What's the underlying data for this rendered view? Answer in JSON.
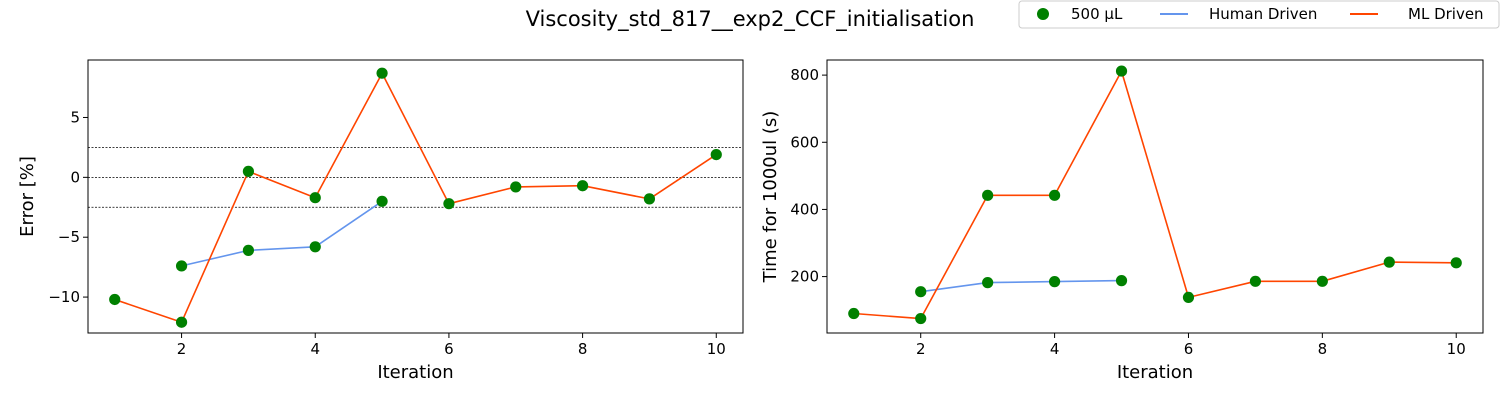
{
  "colors": {
    "marker": "#008000",
    "human": "#6495ED",
    "ml": "#FF4500",
    "ref_line": "#000000"
  },
  "chart_data": {
    "title": "Viscosity_std_817__exp2_CCF_initialisation",
    "legend": {
      "position": "top-right",
      "entries": [
        {
          "label": "500 µL",
          "kind": "marker",
          "color": "#008000"
        },
        {
          "label": "Human Driven",
          "kind": "line",
          "color": "#6495ED"
        },
        {
          "label": "ML Driven",
          "kind": "line",
          "color": "#FF4500"
        }
      ]
    },
    "panels": [
      {
        "type": "line",
        "xlabel": "Iteration",
        "ylabel": "Error [%]",
        "xlim": [
          0.6,
          10.4
        ],
        "ylim": [
          -13.0,
          9.8
        ],
        "xticks": [
          2,
          4,
          6,
          8,
          10
        ],
        "yticks": [
          -10,
          -5,
          0,
          5
        ],
        "ytick_labels": [
          "−10",
          "−5",
          "0",
          "5"
        ],
        "reference_lines": [
          2.5,
          0,
          -2.5
        ],
        "series": [
          {
            "name": "Human Driven",
            "color": "#6495ED",
            "x": [
              2,
              3,
              4,
              5
            ],
            "y": [
              -7.4,
              -6.1,
              -5.8,
              -2.0
            ]
          },
          {
            "name": "ML Driven",
            "color": "#FF4500",
            "x": [
              1,
              2,
              3,
              4,
              5,
              6,
              7,
              8,
              9,
              10
            ],
            "y": [
              -10.2,
              -12.1,
              0.5,
              -1.7,
              8.7,
              -2.2,
              -0.8,
              -0.7,
              -1.8,
              1.9
            ]
          }
        ],
        "markers": {
          "name": "500 µL",
          "color": "#008000",
          "x": [
            1,
            2,
            2,
            3,
            3,
            4,
            4,
            5,
            5,
            6,
            7,
            8,
            9,
            10
          ],
          "y": [
            -10.2,
            -12.1,
            -7.4,
            0.5,
            -6.1,
            -1.7,
            -5.8,
            8.7,
            -2.0,
            -2.2,
            -0.8,
            -0.7,
            -1.8,
            1.9
          ]
        }
      },
      {
        "type": "line",
        "xlabel": "Iteration",
        "ylabel": "Time for 1000ul (s)",
        "xlim": [
          0.6,
          10.4
        ],
        "ylim": [
          32,
          845
        ],
        "xticks": [
          2,
          4,
          6,
          8,
          10
        ],
        "yticks": [
          200,
          400,
          600,
          800
        ],
        "ytick_labels": [
          "200",
          "400",
          "600",
          "800"
        ],
        "reference_lines": [],
        "series": [
          {
            "name": "Human Driven",
            "color": "#6495ED",
            "x": [
              2,
              3,
              4,
              5
            ],
            "y": [
              155,
              182,
              185,
              188
            ]
          },
          {
            "name": "ML Driven",
            "color": "#FF4500",
            "x": [
              1,
              2,
              3,
              4,
              5,
              6,
              7,
              8,
              9,
              10
            ],
            "y": [
              90,
              75,
              442,
              442,
              812,
              138,
              186,
              186,
              243,
              241
            ]
          }
        ],
        "markers": {
          "name": "500 µL",
          "color": "#008000",
          "x": [
            1,
            2,
            2,
            3,
            3,
            4,
            4,
            5,
            5,
            6,
            7,
            8,
            9,
            10
          ],
          "y": [
            90,
            75,
            155,
            442,
            182,
            442,
            185,
            812,
            188,
            138,
            186,
            186,
            243,
            241
          ]
        }
      }
    ]
  }
}
